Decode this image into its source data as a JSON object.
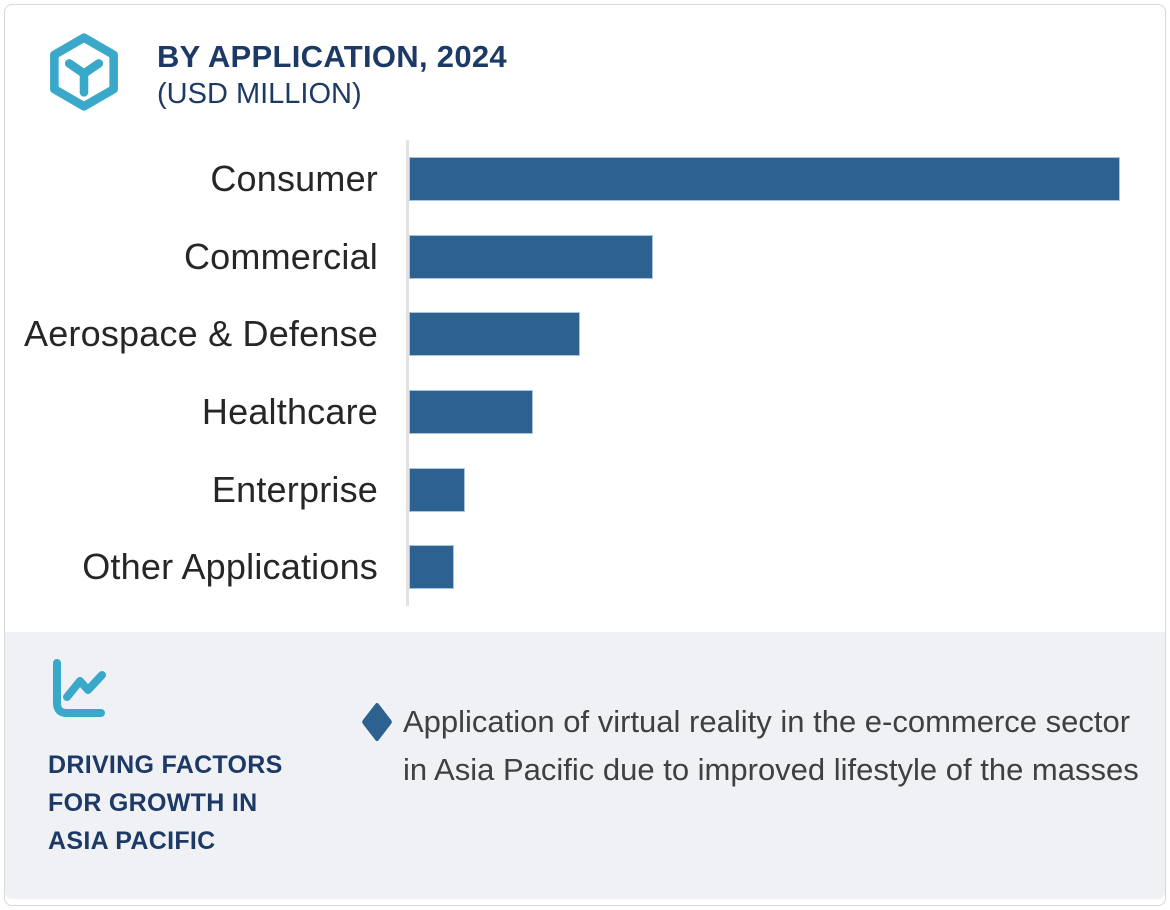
{
  "header": {
    "title": "BY APPLICATION, 2024",
    "subtitle": "(USD MILLION)"
  },
  "chart_data": {
    "type": "bar",
    "orientation": "horizontal",
    "title": "BY APPLICATION, 2024",
    "subtitle": "(USD MILLION)",
    "xlabel": "",
    "ylabel": "",
    "categories": [
      "Consumer",
      "Commercial",
      "Aerospace & Defense",
      "Healthcare",
      "Enterprise",
      "Other Applications"
    ],
    "values_relative_pct_of_max": [
      100,
      34.3,
      24.1,
      17.5,
      7.9,
      6.3
    ],
    "value_axis_labeled": false,
    "grid": false,
    "legend": "none",
    "bar_color": "#2d618f",
    "axis_line_color": "#e2e2e2"
  },
  "driving_factors": {
    "heading_lines": [
      "DRIVING FACTORS",
      "FOR GROWTH IN",
      "ASIA PACIFIC"
    ],
    "heading_full": "DRIVING FACTORS FOR GROWTH IN ASIA PACIFIC",
    "bullets": [
      "Application of virtual reality in the e-commerce sector in Asia Pacific due to improved lifestyle of the masses"
    ]
  },
  "icons": {
    "brand": "hexagon-cube-icon",
    "panel": "line-chart-icon",
    "bullet": "diamond-bullet-icon"
  },
  "colors": {
    "navy_title": "#1d3a66",
    "teal_accent": "#3aa9c9",
    "bar_blue": "#2d618f",
    "panel_background": "#eff1f5",
    "label_text": "#262626",
    "body_text": "#404040",
    "card_border": "#d7d8da"
  }
}
